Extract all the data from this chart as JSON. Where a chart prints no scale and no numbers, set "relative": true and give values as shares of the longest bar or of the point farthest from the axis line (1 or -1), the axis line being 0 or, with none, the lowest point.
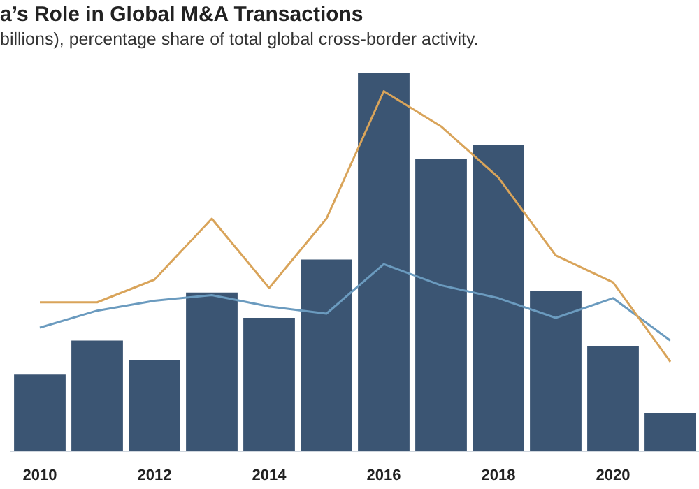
{
  "chart_data": {
    "type": "bar",
    "title": "a’s Role in Global M&A Transactions",
    "subtitle": "billions), percentage share of total global cross-border activity.",
    "relative": true,
    "legend": false,
    "categories": [
      "2010",
      null,
      "2012",
      null,
      "2014",
      null,
      "2016",
      null,
      "2018",
      null,
      "2020",
      null
    ],
    "series": [
      {
        "color": "#3b5573",
        "values": [
          0.202,
          0.292,
          0.24,
          0.419,
          0.352,
          0.506,
          1,
          0.772,
          0.809,
          0.423,
          0.277,
          0.101
        ]
      },
      {
        "type": "line",
        "color": "#d9a45a",
        "values": [
          0.393,
          0.393,
          0.453,
          0.614,
          0.431,
          0.614,
          0.951,
          0.858,
          0.723,
          0.517,
          0.446,
          0.236
        ]
      },
      {
        "type": "line",
        "color": "#6b9bbf",
        "values": [
          0.326,
          0.371,
          0.397,
          0.412,
          0.382,
          0.363,
          0.494,
          0.438,
          0.404,
          0.352,
          0.404,
          0.292
        ]
      }
    ]
  }
}
